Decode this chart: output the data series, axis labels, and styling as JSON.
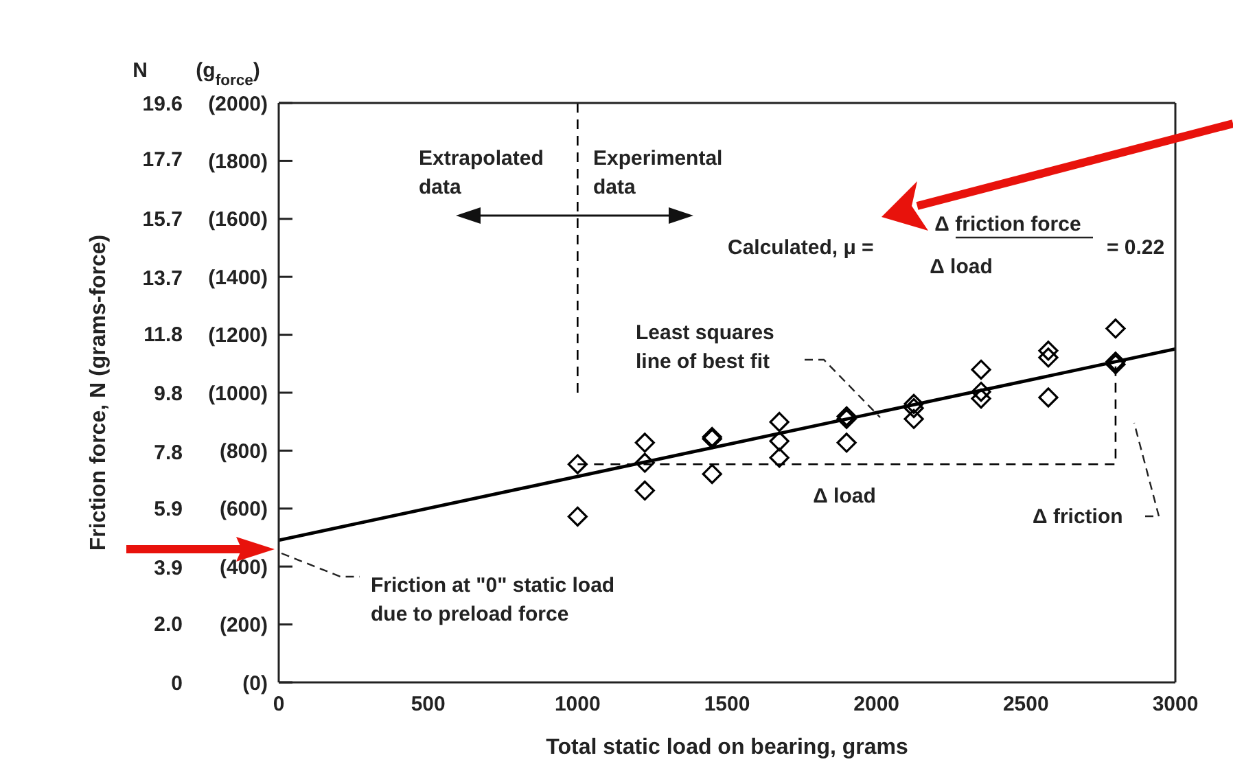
{
  "chart_data": {
    "type": "scatter",
    "xlabel": "Total static load on bearing, grams",
    "ylabel": "Friction force, N (grams-force)",
    "xlim": [
      0,
      3000
    ],
    "xticks": [
      0,
      500,
      1000,
      1500,
      2000,
      2500,
      3000
    ],
    "ylim": [
      0,
      19.6
    ],
    "yticks": [
      0,
      {
        "value": 2,
        "label": "2.0"
      },
      3.9,
      5.9,
      7.8,
      9.8,
      11.8,
      13.7,
      15.7,
      17.7,
      19.6
    ],
    "y2lim": [
      0,
      2000
    ],
    "y2ticks": [
      {
        "value": 0,
        "label": "(0)"
      },
      {
        "value": 200,
        "label": "(200)"
      },
      {
        "value": 400,
        "label": "(400)"
      },
      {
        "value": 600,
        "label": "(600)"
      },
      {
        "value": 800,
        "label": "(800)"
      },
      {
        "value": 1000,
        "label": "(1000)"
      },
      {
        "value": 1200,
        "label": "(1200)"
      },
      {
        "value": 1400,
        "label": "(1400)"
      },
      {
        "value": 1600,
        "label": "(1600)"
      },
      {
        "value": 1800,
        "label": "(1800)"
      },
      {
        "value": 2000,
        "label": "(2000)"
      }
    ],
    "grid": false,
    "legend": false,
    "marker": "diamond",
    "series": [
      {
        "type": "scatter",
        "color": "#000000",
        "x": [
          1000,
          1000,
          1225,
          1225,
          1225,
          1450,
          1450,
          1450,
          1675,
          1675,
          1675,
          1900,
          1900,
          1900,
          2125,
          2125,
          2125,
          2350,
          2350,
          2350,
          2575,
          2575,
          2575,
          2800,
          2800,
          2800
        ],
        "values": [
          7.38,
          5.61,
          8.11,
          7.43,
          6.49,
          8.3,
          8.24,
          7.05,
          8.81,
          8.16,
          7.6,
          9.0,
          8.91,
          8.11,
          9.42,
          9.28,
          8.91,
          10.58,
          9.83,
          9.6,
          11.22,
          10.99,
          9.64,
          11.97,
          10.85,
          10.76
        ]
      },
      {
        "type": "line",
        "marker": "none",
        "color": "#000000",
        "line_style": "solid",
        "x": [
          0,
          3000
        ],
        "values": [
          4.81,
          11.28
        ]
      },
      {
        "type": "line",
        "marker": "none",
        "color": "#000000",
        "line_style": "dashed",
        "x": [
          1000,
          2800,
          2800
        ],
        "values": [
          7.38,
          7.38,
          10.85
        ]
      },
      {
        "type": "line",
        "marker": "none",
        "color": "#000000",
        "line_style": "dashed",
        "x": [
          1000,
          1000
        ],
        "values": [
          19.6,
          9.71
        ]
      }
    ],
    "annotations": [
      "N",
      "(g$_{force}$)",
      "Extrapolated\ndata",
      "Experimental\ndata",
      "Calculated, μ =",
      "Δ friction force",
      "Δ load",
      "= 0.22",
      "Least squares\nline of best fit",
      "Δ load",
      "Δ friction",
      "Friction at \"0\" static load\ndue to preload force"
    ]
  }
}
